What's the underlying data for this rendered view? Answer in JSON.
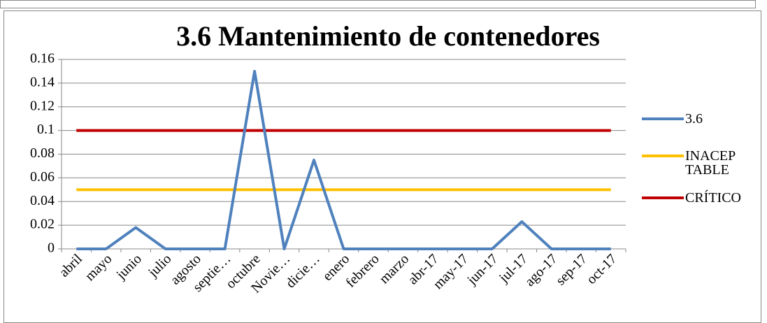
{
  "chart_data": {
    "type": "line",
    "title": "3.6 Mantenimiento de contenedores",
    "categories": [
      "abril",
      "mayo",
      "junio",
      "julio",
      "agosto",
      "septie…",
      "octubre",
      "Novie…",
      "dicie…",
      "enero",
      "febrero",
      "marzo",
      "abr-17",
      "may-17",
      "jun-17",
      "jul-17",
      "ago-17",
      "sep-17",
      "oct-17"
    ],
    "series": [
      {
        "name": "3.6",
        "color": "#4f81bd",
        "values": [
          0,
          0,
          0.018,
          0,
          0,
          0,
          0.15,
          0,
          0.075,
          0,
          0,
          0,
          0,
          0,
          0,
          0.023,
          0,
          0,
          0
        ]
      },
      {
        "name": "INACEPTABLE",
        "color": "#ffc000",
        "values": [
          0.05,
          0.05,
          0.05,
          0.05,
          0.05,
          0.05,
          0.05,
          0.05,
          0.05,
          0.05,
          0.05,
          0.05,
          0.05,
          0.05,
          0.05,
          0.05,
          0.05,
          0.05,
          0.05
        ]
      },
      {
        "name": "CRÍTICO",
        "color": "#c00000",
        "values": [
          0.1,
          0.1,
          0.1,
          0.1,
          0.1,
          0.1,
          0.1,
          0.1,
          0.1,
          0.1,
          0.1,
          0.1,
          0.1,
          0.1,
          0.1,
          0.1,
          0.1,
          0.1,
          0.1
        ]
      }
    ],
    "ylim": [
      0,
      0.16
    ],
    "yticks": [
      0,
      0.02,
      0.04,
      0.06,
      0.08,
      0.1,
      0.12,
      0.14,
      0.16
    ],
    "grid": true,
    "legend": "right"
  }
}
